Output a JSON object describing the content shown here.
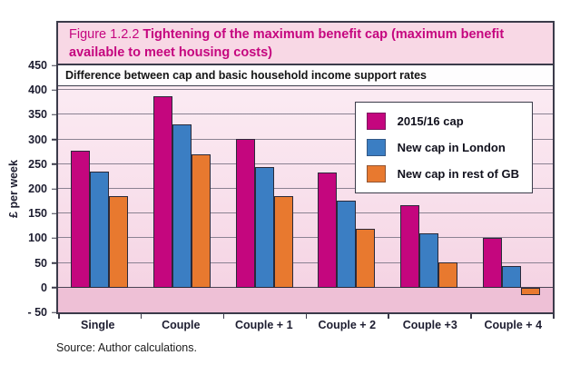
{
  "figure": {
    "title_prefix": "Figure 1.2.2 ",
    "title_main": "Tightening of the maximum benefit cap (maximum benefit available to meet housing costs)",
    "source": "Source: Author calculations."
  },
  "colors": {
    "title_magenta": "#c5067f",
    "header_bg": "#f8d8e5",
    "figure_border": "#3b3b4a",
    "plot_bg_top": "#fcedf4",
    "plot_bg_bottom": "#f4d0e1",
    "negative_band": "#eec0d6",
    "gridline": "#8b8292",
    "series_magenta": "#c4067e",
    "series_blue": "#3b7ec3",
    "series_orange": "#e8792f"
  },
  "chart_data": {
    "type": "bar",
    "title": "Figure 1.2.2 Tightening of the maximum benefit cap (maximum benefit available to meet housing costs)",
    "subtitle": "Difference between cap and basic household income support rates",
    "ylabel": "£ per week",
    "ylim": [
      -50,
      450
    ],
    "ytick_step": 50,
    "ytick_values": [
      450,
      400,
      350,
      300,
      250,
      200,
      150,
      100,
      50,
      0,
      -50
    ],
    "ytick_labels": [
      "450",
      "400",
      "350",
      "300",
      "250",
      "200",
      "150",
      "100",
      "50",
      "0",
      "- 50"
    ],
    "grid": true,
    "legend_position": "top-right",
    "categories": [
      "Single",
      "Couple",
      "Couple + 1",
      "Couple + 2",
      "Couple +3",
      "Couple + 4"
    ],
    "series": [
      {
        "name": "2015/16 cap",
        "color": "#c4067e",
        "values": [
          278,
          387,
          301,
          234,
          167,
          100
        ]
      },
      {
        "name": "New cap in London",
        "color": "#3b7ec3",
        "values": [
          235,
          330,
          245,
          177,
          110,
          43
        ]
      },
      {
        "name": "New cap in rest of GB",
        "color": "#e8792f",
        "values": [
          185,
          270,
          185,
          119,
          52,
          -15
        ]
      }
    ]
  }
}
